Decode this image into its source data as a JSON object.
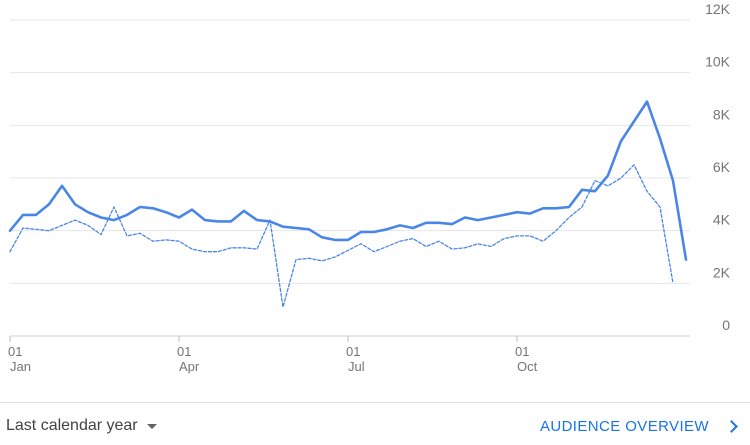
{
  "chart_data": {
    "type": "line",
    "x_ticks": [
      {
        "day": "01",
        "month": "Jan",
        "index": 0
      },
      {
        "day": "01",
        "month": "Apr",
        "index": 13
      },
      {
        "day": "01",
        "month": "Jul",
        "index": 26
      },
      {
        "day": "01",
        "month": "Oct",
        "index": 39
      }
    ],
    "y_ticks": [
      "0",
      "2K",
      "4K",
      "6K",
      "8K",
      "10K",
      "12K"
    ],
    "ylim": [
      0,
      12000
    ],
    "grid": true,
    "series": [
      {
        "style": "solid",
        "color": "#4a86e8",
        "values": [
          4000,
          4600,
          4600,
          5000,
          5700,
          5000,
          4700,
          4500,
          4400,
          4600,
          4900,
          4850,
          4700,
          4500,
          4800,
          4400,
          4350,
          4350,
          4750,
          4400,
          4350,
          4150,
          4100,
          4050,
          3750,
          3650,
          3650,
          3950,
          3950,
          4050,
          4200,
          4100,
          4300,
          4300,
          4250,
          4500,
          4400,
          4500,
          4600,
          4700,
          4650,
          4850,
          4850,
          4900,
          5550,
          5500,
          6100,
          7400,
          8150,
          8900,
          7500,
          5900,
          2900
        ]
      },
      {
        "style": "dashed",
        "color": "#4a86e8",
        "values": [
          3200,
          4100,
          4050,
          4000,
          4200,
          4400,
          4200,
          3850,
          4900,
          3800,
          3900,
          3600,
          3650,
          3600,
          3300,
          3200,
          3200,
          3350,
          3350,
          3300,
          4400,
          1100,
          2900,
          2950,
          2850,
          3000,
          3250,
          3500,
          3200,
          3400,
          3600,
          3700,
          3400,
          3600,
          3300,
          3350,
          3500,
          3400,
          3700,
          3800,
          3800,
          3600,
          4000,
          4500,
          4900,
          5900,
          5700,
          6000,
          6500,
          5500,
          4900,
          2000
        ]
      }
    ]
  },
  "footer": {
    "date_range": "Last calendar year",
    "link_label": "AUDIENCE OVERVIEW"
  }
}
